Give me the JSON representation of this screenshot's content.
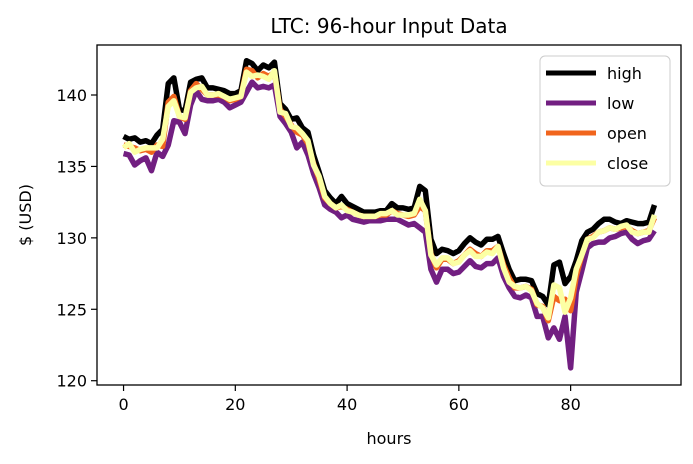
{
  "chart_data": {
    "type": "line",
    "title": "LTC: 96-hour Input Data",
    "xlabel": "hours",
    "ylabel": "$ (USD)",
    "xlim": [
      -4.75,
      99.75
    ],
    "ylim": [
      119.7,
      143.5
    ],
    "xticks": [
      0,
      20,
      40,
      60,
      80
    ],
    "yticks": [
      120,
      125,
      130,
      135,
      140
    ],
    "grid": false,
    "legend_position": "top-right",
    "x": [
      0,
      1,
      2,
      3,
      4,
      5,
      6,
      7,
      8,
      9,
      10,
      11,
      12,
      13,
      14,
      15,
      16,
      17,
      18,
      19,
      20,
      21,
      22,
      23,
      24,
      25,
      26,
      27,
      28,
      29,
      30,
      31,
      32,
      33,
      34,
      35,
      36,
      37,
      38,
      39,
      40,
      41,
      42,
      43,
      44,
      45,
      46,
      47,
      48,
      49,
      50,
      51,
      52,
      53,
      54,
      55,
      56,
      57,
      58,
      59,
      60,
      61,
      62,
      63,
      64,
      65,
      66,
      67,
      68,
      69,
      70,
      71,
      72,
      73,
      74,
      75,
      76,
      77,
      78,
      79,
      80,
      81,
      82,
      83,
      84,
      85,
      86,
      87,
      88,
      89,
      90,
      91,
      92,
      93,
      94,
      95
    ],
    "series": [
      {
        "name": "high",
        "color": "#000000",
        "values": [
          137.1,
          136.9,
          137.0,
          136.7,
          136.8,
          136.6,
          137.2,
          137.6,
          140.8,
          141.2,
          139.0,
          138.9,
          140.9,
          141.1,
          141.2,
          140.5,
          140.5,
          140.4,
          140.3,
          140.1,
          140.1,
          140.3,
          142.4,
          142.2,
          141.7,
          142.1,
          141.9,
          142.3,
          139.4,
          139.0,
          138.3,
          138.4,
          137.7,
          137.4,
          135.8,
          134.6,
          133.3,
          132.8,
          132.4,
          132.9,
          132.4,
          132.2,
          132.0,
          131.8,
          131.8,
          131.8,
          131.9,
          131.9,
          132.4,
          132.1,
          132.1,
          132.0,
          132.1,
          133.6,
          133.3,
          129.9,
          128.9,
          129.2,
          129.1,
          128.9,
          129.1,
          129.6,
          130.0,
          129.7,
          129.5,
          129.9,
          129.9,
          130.1,
          128.9,
          127.8,
          127.0,
          127.1,
          127.1,
          127.0,
          126.1,
          125.9,
          125.3,
          128.1,
          128.3,
          126.8,
          127.3,
          128.4,
          129.8,
          130.4,
          130.6,
          131.0,
          131.3,
          131.3,
          131.1,
          131.0,
          131.2,
          131.1,
          131.0,
          131.0,
          131.1,
          132.3
        ]
      },
      {
        "name": "low",
        "color": "#721f81",
        "values": [
          135.9,
          135.8,
          135.1,
          135.4,
          135.6,
          134.7,
          136.0,
          135.7,
          136.5,
          138.2,
          138.1,
          137.3,
          139.3,
          140.3,
          139.7,
          139.6,
          139.6,
          139.7,
          139.5,
          139.1,
          139.3,
          139.5,
          140.2,
          140.9,
          140.5,
          140.6,
          140.5,
          140.7,
          138.5,
          138.0,
          137.4,
          136.3,
          136.7,
          135.8,
          134.5,
          133.5,
          132.3,
          132.0,
          131.8,
          131.4,
          131.6,
          131.3,
          131.2,
          131.1,
          131.2,
          131.2,
          131.2,
          131.3,
          131.3,
          131.3,
          131.1,
          130.9,
          131.0,
          130.7,
          130.4,
          127.8,
          126.9,
          127.8,
          127.8,
          127.5,
          127.6,
          128.0,
          128.4,
          128.0,
          127.9,
          128.2,
          128.2,
          128.6,
          127.3,
          126.5,
          125.9,
          125.8,
          126.0,
          125.8,
          124.5,
          124.5,
          123.0,
          123.7,
          122.9,
          124.5,
          120.9,
          126.2,
          127.7,
          129.3,
          129.6,
          129.7,
          129.7,
          130.0,
          130.1,
          130.3,
          130.4,
          129.9,
          129.6,
          129.8,
          129.9,
          130.5
        ]
      },
      {
        "name": "open",
        "color": "#f1651d",
        "values": [
          136.5,
          136.4,
          136.3,
          136.1,
          136.2,
          136.0,
          136.5,
          136.4,
          139.5,
          139.9,
          138.5,
          138.3,
          140.3,
          140.8,
          140.4,
          140.0,
          140.0,
          140.0,
          139.9,
          139.6,
          139.7,
          139.9,
          141.8,
          141.7,
          141.2,
          141.5,
          141.3,
          141.6,
          139.0,
          138.5,
          137.9,
          137.4,
          137.2,
          136.6,
          135.2,
          134.1,
          132.8,
          132.4,
          132.1,
          132.2,
          132.0,
          131.8,
          131.6,
          131.5,
          131.5,
          131.5,
          131.6,
          131.6,
          131.9,
          131.7,
          131.6,
          131.5,
          131.6,
          132.2,
          131.9,
          128.9,
          127.9,
          128.5,
          128.5,
          128.2,
          128.4,
          128.8,
          129.2,
          128.9,
          128.7,
          129.1,
          129.1,
          129.4,
          128.1,
          127.2,
          126.5,
          126.5,
          126.6,
          126.4,
          125.3,
          125.2,
          124.2,
          125.9,
          125.6,
          125.7,
          124.9,
          127.3,
          128.8,
          129.9,
          130.1,
          130.4,
          130.5,
          130.7,
          130.6,
          130.7,
          130.8,
          130.5,
          130.3,
          130.4,
          130.5,
          131.4
        ]
      },
      {
        "name": "close",
        "color": "#fcffa4",
        "values": [
          136.3,
          136.6,
          136.0,
          136.2,
          136.3,
          136.3,
          136.3,
          136.9,
          139.2,
          139.6,
          138.5,
          138.4,
          140.2,
          140.5,
          140.6,
          140.0,
          140.0,
          140.1,
          139.9,
          139.7,
          139.8,
          139.9,
          141.6,
          141.3,
          141.4,
          141.3,
          141.1,
          141.7,
          138.8,
          138.7,
          137.8,
          137.7,
          137.3,
          136.8,
          135.1,
          134.3,
          132.9,
          132.4,
          132.1,
          132.3,
          131.9,
          131.8,
          131.6,
          131.5,
          131.5,
          131.5,
          131.7,
          131.7,
          131.9,
          131.6,
          131.6,
          131.6,
          131.7,
          132.7,
          131.9,
          128.8,
          128.1,
          128.6,
          128.6,
          128.2,
          128.3,
          128.8,
          129.1,
          128.7,
          128.7,
          129.0,
          128.9,
          129.4,
          127.9,
          126.9,
          126.6,
          126.5,
          126.6,
          126.3,
          125.4,
          125.1,
          124.4,
          126.7,
          126.5,
          124.8,
          125.8,
          127.8,
          128.8,
          129.9,
          130.0,
          130.4,
          130.5,
          130.7,
          130.6,
          130.8,
          130.9,
          130.4,
          130.3,
          130.4,
          130.4,
          131.6
        ]
      }
    ]
  }
}
